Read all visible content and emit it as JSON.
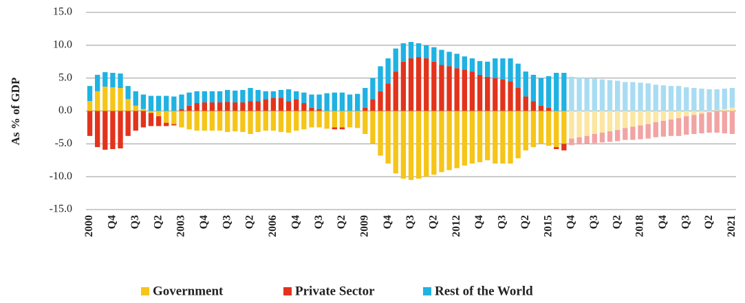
{
  "chart_data": {
    "type": "bar",
    "stacked": true,
    "y_axis_label": "As % of GDP",
    "categories": [
      "2000",
      null,
      null,
      "Q4",
      null,
      null,
      "Q3",
      null,
      null,
      "Q2",
      null,
      null,
      "2003",
      null,
      null,
      "Q4",
      null,
      null,
      "Q3",
      null,
      null,
      "Q2",
      null,
      null,
      "2006",
      null,
      null,
      "Q4",
      null,
      null,
      "Q3",
      null,
      null,
      "Q2",
      null,
      null,
      "2009",
      null,
      null,
      "Q4",
      null,
      null,
      "Q3",
      null,
      null,
      "Q2",
      null,
      null,
      "2012",
      null,
      null,
      "Q4",
      null,
      null,
      "Q3",
      null,
      null,
      "Q2",
      null,
      null,
      "2015",
      null,
      null,
      "Q4",
      null,
      null,
      "Q3",
      null,
      null,
      "Q2",
      null,
      null,
      "2018",
      null,
      null,
      "Q4",
      null,
      null,
      "Q3",
      null,
      null,
      "Q2",
      null,
      null,
      "2021"
    ],
    "projection_start": 63,
    "series": [
      {
        "name": "Government",
        "color": "#f5c518",
        "light_color": "#fbe6a2",
        "values": [
          1.5,
          3.0,
          3.7,
          3.6,
          3.5,
          1.8,
          0.8,
          0.3,
          -0.3,
          -0.8,
          -1.8,
          -2.0,
          -2.5,
          -2.8,
          -3.0,
          -3.0,
          -3.0,
          -3.0,
          -3.2,
          -3.1,
          -3.2,
          -3.5,
          -3.2,
          -3.0,
          -3.0,
          -3.2,
          -3.3,
          -3.0,
          -2.8,
          -2.5,
          -2.5,
          -2.7,
          -2.5,
          -2.5,
          -2.5,
          -2.6,
          -3.5,
          -5.0,
          -6.8,
          -8.0,
          -9.5,
          -10.3,
          -10.5,
          -10.3,
          -10.0,
          -9.7,
          -9.3,
          -9.0,
          -8.7,
          -8.3,
          -8.0,
          -7.8,
          -7.5,
          -8.0,
          -8.0,
          -8.0,
          -7.2,
          -6.0,
          -5.5,
          -5.0,
          -5.3,
          -5.5,
          -5.0,
          -4.2,
          -4.0,
          -3.8,
          -3.5,
          -3.3,
          -3.1,
          -2.9,
          -2.6,
          -2.4,
          -2.2,
          -2.0,
          -1.7,
          -1.5,
          -1.3,
          -1.1,
          -0.8,
          -0.6,
          -0.4,
          -0.2,
          0.1,
          0.3,
          0.5
        ]
      },
      {
        "name": "Private Sector",
        "color": "#e3331c",
        "light_color": "#f2a3a3",
        "values": [
          -3.8,
          -5.5,
          -5.9,
          -5.8,
          -5.7,
          -3.8,
          -3.0,
          -2.5,
          -2.0,
          -1.5,
          -0.5,
          -0.2,
          0.3,
          0.8,
          1.2,
          1.3,
          1.3,
          1.3,
          1.4,
          1.3,
          1.3,
          1.5,
          1.5,
          1.8,
          2.0,
          2.0,
          1.5,
          1.8,
          1.2,
          0.5,
          0.3,
          0.0,
          -0.3,
          -0.3,
          0,
          0,
          0.5,
          1.8,
          3.0,
          4.2,
          6.0,
          7.5,
          8.0,
          8.2,
          8.0,
          7.5,
          7.0,
          6.8,
          6.5,
          6.3,
          6.0,
          5.5,
          5.2,
          5.0,
          4.8,
          4.5,
          3.5,
          2.2,
          1.5,
          0.8,
          0.5,
          -0.3,
          -1.0,
          -1.0,
          -1.1,
          -1.2,
          -1.4,
          -1.5,
          -1.6,
          -1.7,
          -1.8,
          -2.0,
          -2.1,
          -2.2,
          -2.3,
          -2.4,
          -2.5,
          -2.7,
          -2.8,
          -2.9,
          -3.0,
          -3.1,
          -3.3,
          -3.4,
          -3.5
        ]
      },
      {
        "name": "Rest of the World",
        "color": "#1fb2e3",
        "light_color": "#a8dcf2",
        "values": [
          2.3,
          2.5,
          2.2,
          2.2,
          2.2,
          2.0,
          2.2,
          2.2,
          2.3,
          2.3,
          2.3,
          2.2,
          2.2,
          2.0,
          1.8,
          1.7,
          1.7,
          1.7,
          1.8,
          1.8,
          1.9,
          2.0,
          1.7,
          1.2,
          1.0,
          1.2,
          1.8,
          1.2,
          1.6,
          2.0,
          2.2,
          2.7,
          2.8,
          2.8,
          2.5,
          2.6,
          3.0,
          3.2,
          3.8,
          3.8,
          3.5,
          2.8,
          2.5,
          2.1,
          2.0,
          2.2,
          2.3,
          2.2,
          2.2,
          2.0,
          2.0,
          2.1,
          2.3,
          3.0,
          3.2,
          3.5,
          3.7,
          3.8,
          4.0,
          4.2,
          4.8,
          5.8,
          5.8,
          5.2,
          5.1,
          5.0,
          4.9,
          4.8,
          4.7,
          4.6,
          4.4,
          4.4,
          4.3,
          4.2,
          4.0,
          3.9,
          3.8,
          3.8,
          3.6,
          3.5,
          3.4,
          3.3,
          3.2,
          3.1,
          3.0
        ]
      }
    ],
    "ylim": [
      -15,
      15
    ],
    "yticks": [
      {
        "value": -15,
        "label": "-15.0"
      },
      {
        "value": -10,
        "label": "-10.0"
      },
      {
        "value": -5,
        "label": "-5.0"
      },
      {
        "value": 0,
        "label": "0.0"
      },
      {
        "value": 5,
        "label": "5.0"
      },
      {
        "value": 10,
        "label": "10.0"
      },
      {
        "value": 15,
        "label": "15.0"
      }
    ],
    "grid": true,
    "legend": "bottom"
  }
}
